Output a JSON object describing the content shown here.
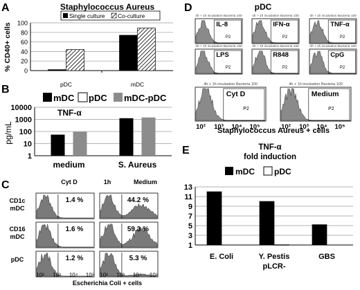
{
  "figure": {
    "panel_letters": [
      "A",
      "B",
      "C",
      "D",
      "E"
    ]
  },
  "chart_data": [
    {
      "panel": "A",
      "type": "bar",
      "title": "Staphylococcus Aureus",
      "ylabel": "% CD40+ cells",
      "xlabel": "",
      "categories": [
        "pDC",
        "mDC"
      ],
      "ylim": [
        0,
        100
      ],
      "yticks": [
        "0",
        "20",
        "40",
        "60",
        "80",
        "100"
      ],
      "grid": true,
      "legend_position": "top",
      "series": [
        {
          "name": "Single culture",
          "values": [
            2,
            74
          ],
          "color": "#000000",
          "pattern": "solid"
        },
        {
          "name": "Co-culture",
          "values": [
            44,
            89
          ],
          "color": "#000000",
          "pattern": "hatched"
        }
      ]
    },
    {
      "panel": "B",
      "type": "bar",
      "title": "",
      "annotation": "TNF-α",
      "ylabel": "pg/mL",
      "xlabel": "",
      "scale": "log",
      "categories": [
        "medium",
        "S. Aureus"
      ],
      "ylim": [
        1,
        10000
      ],
      "yticks": [
        "1",
        "10",
        "100",
        "1000",
        "10000"
      ],
      "grid": true,
      "legend_position": "top",
      "series": [
        {
          "name": "mDC",
          "values": [
            55,
            1250
          ],
          "color": "#000000"
        },
        {
          "name": "pDC",
          "values": [
            null,
            null
          ],
          "color": "#ffffff"
        },
        {
          "name": "mDC-pDC",
          "values": [
            95,
            1450
          ],
          "color": "#8c8c8c"
        }
      ]
    },
    {
      "panel": "C",
      "type": "histogram-grid",
      "xlabel": "Escherichia Coli + cells",
      "time_label": "1h",
      "columns": [
        "Cyt D",
        "Medium"
      ],
      "rows": [
        "CD1c mDC",
        "CD16 mDC",
        "pDC"
      ],
      "x_ticks": [
        "10²",
        "10³",
        "10⁴",
        "10⁵"
      ],
      "percentages": [
        [
          "1.4 %",
          "44.2 %"
        ],
        [
          "1.6 %",
          "59.3 %"
        ],
        [
          "1.2 %",
          "5.3 %"
        ]
      ]
    },
    {
      "panel": "D",
      "type": "histogram-grid",
      "title": "pDC",
      "xlabel": "Staphylococcus Aureus + cells",
      "header": "4h + 1h incubation Bacteria 100",
      "gate": "P2",
      "small_plots": [
        "IL-8",
        "IFN-α",
        "TNF-α",
        "LPS",
        "R848",
        "CpG"
      ],
      "large_plots": [
        "Cyt D",
        "Medium"
      ],
      "x_ticks": [
        "10²",
        "10³",
        "10⁴",
        "10⁵"
      ]
    },
    {
      "panel": "E",
      "type": "bar",
      "title": "TNF-α",
      "subtitle": "fold induction",
      "xlabel": "",
      "ylabel": "",
      "categories": [
        "E. Coli",
        "Y. Pestis",
        "GBS"
      ],
      "category_sublabels": [
        "",
        "pLCR-",
        ""
      ],
      "ylim": [
        1,
        13
      ],
      "yticks": [
        "1",
        "3",
        "5",
        "7",
        "9",
        "11",
        "13"
      ],
      "grid": true,
      "legend_position": "top",
      "series": [
        {
          "name": "mDC",
          "values": [
            12,
            10,
            5.2
          ],
          "color": "#000000"
        },
        {
          "name": "pDC",
          "values": [
            null,
            1.1,
            null
          ],
          "color": "#ffffff"
        }
      ]
    }
  ]
}
